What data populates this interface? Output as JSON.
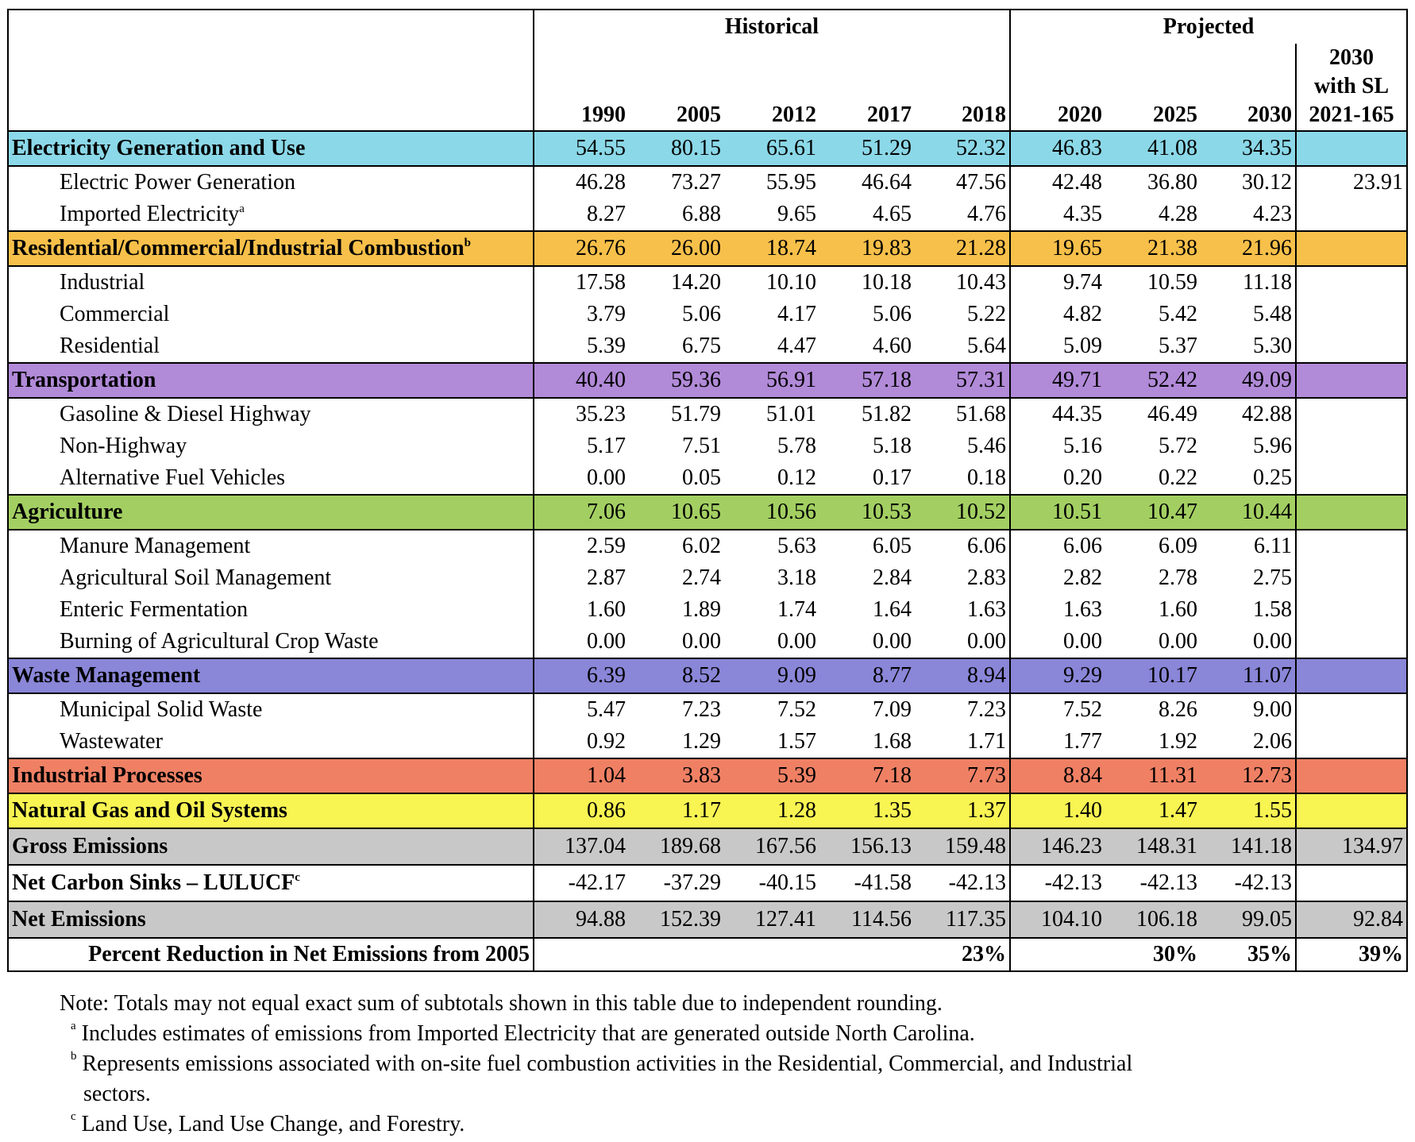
{
  "header": {
    "group_historical": "Historical",
    "group_projected": "Projected",
    "years": [
      "1990",
      "2005",
      "2012",
      "2017",
      "2018",
      "2020",
      "2025",
      "2030"
    ],
    "last_col_line1": "2030",
    "last_col_line2": "with SL",
    "last_col_line3": "2021-165"
  },
  "colors": {
    "electricity": "#8BD8E8",
    "combustion": "#F7C04A",
    "transportation": "#B18AD8",
    "agriculture": "#A3CF62",
    "waste": "#8A86D8",
    "industrial_processes": "#EF8064",
    "natural_gas": "#F8F452",
    "gross": "#C8C8C8",
    "net": "#C8C8C8"
  },
  "rows": [
    {
      "kind": "cat",
      "color_key": "electricity",
      "label": "Electricity Generation and Use",
      "sup": "",
      "values": [
        "54.55",
        "80.15",
        "65.61",
        "51.29",
        "52.32",
        "46.83",
        "41.08",
        "34.35",
        ""
      ]
    },
    {
      "kind": "sub",
      "label": "Electric Power Generation",
      "sup": "",
      "values": [
        "46.28",
        "73.27",
        "55.95",
        "46.64",
        "47.56",
        "42.48",
        "36.80",
        "30.12",
        "23.91"
      ]
    },
    {
      "kind": "sub",
      "label": "Imported Electricity",
      "sup": "a",
      "values": [
        "8.27",
        "6.88",
        "9.65",
        "4.65",
        "4.76",
        "4.35",
        "4.28",
        "4.23",
        ""
      ]
    },
    {
      "kind": "cat",
      "color_key": "combustion",
      "label": "Residential/Commercial/Industrial Combustion",
      "sup": "b",
      "values": [
        "26.76",
        "26.00",
        "18.74",
        "19.83",
        "21.28",
        "19.65",
        "21.38",
        "21.96",
        ""
      ]
    },
    {
      "kind": "sub",
      "label": "Industrial",
      "sup": "",
      "values": [
        "17.58",
        "14.20",
        "10.10",
        "10.18",
        "10.43",
        "9.74",
        "10.59",
        "11.18",
        ""
      ]
    },
    {
      "kind": "sub",
      "label": "Commercial",
      "sup": "",
      "values": [
        "3.79",
        "5.06",
        "4.17",
        "5.06",
        "5.22",
        "4.82",
        "5.42",
        "5.48",
        ""
      ]
    },
    {
      "kind": "sub",
      "label": "Residential",
      "sup": "",
      "values": [
        "5.39",
        "6.75",
        "4.47",
        "4.60",
        "5.64",
        "5.09",
        "5.37",
        "5.30",
        ""
      ]
    },
    {
      "kind": "cat",
      "color_key": "transportation",
      "label": "Transportation",
      "sup": "",
      "values": [
        "40.40",
        "59.36",
        "56.91",
        "57.18",
        "57.31",
        "49.71",
        "52.42",
        "49.09",
        ""
      ]
    },
    {
      "kind": "sub",
      "label": "Gasoline & Diesel Highway",
      "sup": "",
      "values": [
        "35.23",
        "51.79",
        "51.01",
        "51.82",
        "51.68",
        "44.35",
        "46.49",
        "42.88",
        ""
      ]
    },
    {
      "kind": "sub",
      "label": "Non-Highway",
      "sup": "",
      "values": [
        "5.17",
        "7.51",
        "5.78",
        "5.18",
        "5.46",
        "5.16",
        "5.72",
        "5.96",
        ""
      ]
    },
    {
      "kind": "sub",
      "label": "Alternative Fuel Vehicles",
      "sup": "",
      "values": [
        "0.00",
        "0.05",
        "0.12",
        "0.17",
        "0.18",
        "0.20",
        "0.22",
        "0.25",
        ""
      ]
    },
    {
      "kind": "cat",
      "color_key": "agriculture",
      "label": "Agriculture",
      "sup": "",
      "values": [
        "7.06",
        "10.65",
        "10.56",
        "10.53",
        "10.52",
        "10.51",
        "10.47",
        "10.44",
        ""
      ]
    },
    {
      "kind": "sub",
      "label": "Manure Management",
      "sup": "",
      "values": [
        "2.59",
        "6.02",
        "5.63",
        "6.05",
        "6.06",
        "6.06",
        "6.09",
        "6.11",
        ""
      ]
    },
    {
      "kind": "sub",
      "label": "Agricultural Soil Management",
      "sup": "",
      "values": [
        "2.87",
        "2.74",
        "3.18",
        "2.84",
        "2.83",
        "2.82",
        "2.78",
        "2.75",
        ""
      ]
    },
    {
      "kind": "sub",
      "label": "Enteric Fermentation",
      "sup": "",
      "values": [
        "1.60",
        "1.89",
        "1.74",
        "1.64",
        "1.63",
        "1.63",
        "1.60",
        "1.58",
        ""
      ]
    },
    {
      "kind": "sub",
      "label": "Burning of Agricultural Crop Waste",
      "sup": "",
      "values": [
        "0.00",
        "0.00",
        "0.00",
        "0.00",
        "0.00",
        "0.00",
        "0.00",
        "0.00",
        ""
      ]
    },
    {
      "kind": "cat",
      "color_key": "waste",
      "label": "Waste Management",
      "sup": "",
      "values": [
        "6.39",
        "8.52",
        "9.09",
        "8.77",
        "8.94",
        "9.29",
        "10.17",
        "11.07",
        ""
      ]
    },
    {
      "kind": "sub",
      "label": "Municipal Solid Waste",
      "sup": "",
      "values": [
        "5.47",
        "7.23",
        "7.52",
        "7.09",
        "7.23",
        "7.52",
        "8.26",
        "9.00",
        ""
      ]
    },
    {
      "kind": "sub",
      "label": "Wastewater",
      "sup": "",
      "values": [
        "0.92",
        "1.29",
        "1.57",
        "1.68",
        "1.71",
        "1.77",
        "1.92",
        "2.06",
        ""
      ]
    },
    {
      "kind": "cat",
      "color_key": "industrial_processes",
      "label": "Industrial Processes",
      "sup": "",
      "values": [
        "1.04",
        "3.83",
        "5.39",
        "7.18",
        "7.73",
        "8.84",
        "11.31",
        "12.73",
        ""
      ]
    },
    {
      "kind": "cat",
      "color_key": "natural_gas",
      "label": "Natural Gas and Oil Systems",
      "sup": "",
      "values": [
        "0.86",
        "1.17",
        "1.28",
        "1.35",
        "1.37",
        "1.40",
        "1.47",
        "1.55",
        ""
      ]
    },
    {
      "kind": "tot",
      "color_key": "gross",
      "label": "Gross Emissions",
      "sup": "",
      "values": [
        "137.04",
        "189.68",
        "167.56",
        "156.13",
        "159.48",
        "146.23",
        "148.31",
        "141.18",
        "134.97"
      ]
    },
    {
      "kind": "tot",
      "color_key": "",
      "label": "Net Carbon Sinks – LULUCF",
      "sup": "c",
      "values": [
        "-42.17",
        "-37.29",
        "-40.15",
        "-41.58",
        "-42.13",
        "-42.13",
        "-42.13",
        "-42.13",
        ""
      ]
    },
    {
      "kind": "tot",
      "color_key": "net",
      "label": "Net Emissions",
      "sup": "",
      "values": [
        "94.88",
        "152.39",
        "127.41",
        "114.56",
        "117.35",
        "104.10",
        "106.18",
        "99.05",
        "92.84"
      ]
    },
    {
      "kind": "pct",
      "color_key": "",
      "label": "Percent Reduction in Net Emissions from 2005",
      "sup": "",
      "values": [
        "",
        "",
        "",
        "",
        "23%",
        "",
        "30%",
        "35%",
        "39%"
      ]
    }
  ],
  "notes": {
    "main": "Note: Totals may not equal exact sum of subtotals shown in this table due to independent rounding.",
    "a_mark": "a",
    "a_text": "Includes estimates of emissions from Imported Electricity that are generated outside North Carolina.",
    "b_mark": "b",
    "b_text": "Represents emissions associated with on-site fuel combustion activities in the Residential, Commercial, and Industrial",
    "b_text2": "sectors.",
    "c_mark": "c",
    "c_text": "Land Use, Land Use Change, and Forestry."
  }
}
